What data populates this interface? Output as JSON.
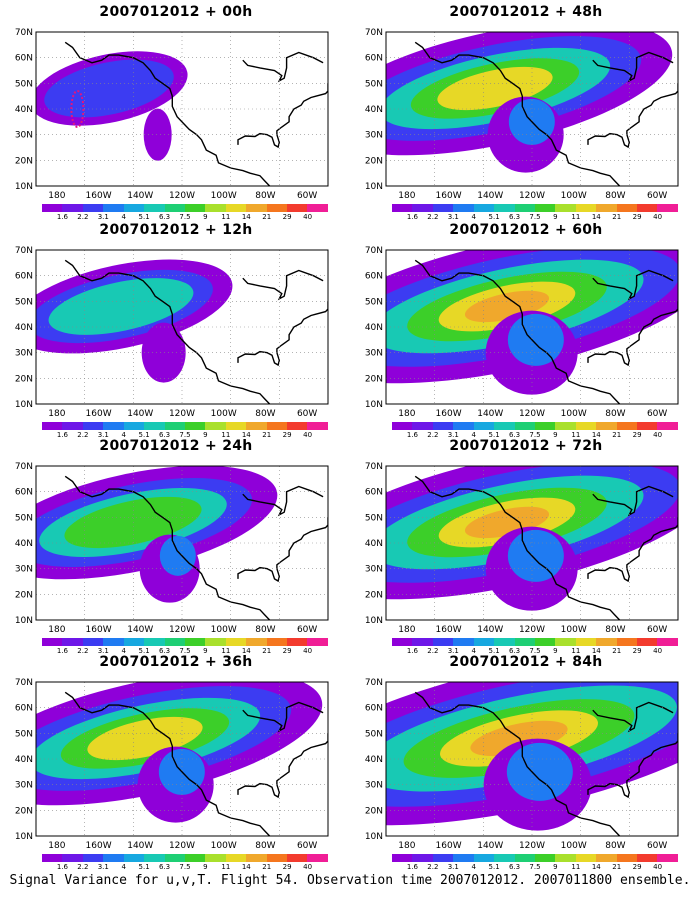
{
  "panels": [
    {
      "title": "2007012012 + 00h",
      "level": 0
    },
    {
      "title": "2007012012 + 48h",
      "level": 3
    },
    {
      "title": "2007012012 + 12h",
      "level": 1
    },
    {
      "title": "2007012012 + 60h",
      "level": 4
    },
    {
      "title": "2007012012 + 24h",
      "level": 2
    },
    {
      "title": "2007012012 + 72h",
      "level": 4
    },
    {
      "title": "2007012012 + 36h",
      "level": 3
    },
    {
      "title": "2007012012 + 84h",
      "level": 5
    }
  ],
  "lat_labels": [
    "70N",
    "60N",
    "50N",
    "40N",
    "30N",
    "20N",
    "10N"
  ],
  "lon_labels": [
    "180",
    "160W",
    "140W",
    "120W",
    "100W",
    "80W",
    "60W"
  ],
  "colorbar": {
    "labels": [
      "1.6",
      "2.2",
      "3.1",
      "4",
      "5.1",
      "6.3",
      "7.5",
      "9",
      "11",
      "14",
      "21",
      "29",
      "40"
    ],
    "colors": [
      "#8f00d9",
      "#6e17e8",
      "#3c3cf2",
      "#1f7bf2",
      "#17a8e0",
      "#18c9b4",
      "#1ecf74",
      "#3ccf29",
      "#a9e02c",
      "#e7d826",
      "#f0a82c",
      "#f5761e",
      "#f33b2e",
      "#f01e96"
    ]
  },
  "caption": "Signal Variance for u,v,T. Flight 54. Observation time 2007012012. 2007011800 ensemble."
}
